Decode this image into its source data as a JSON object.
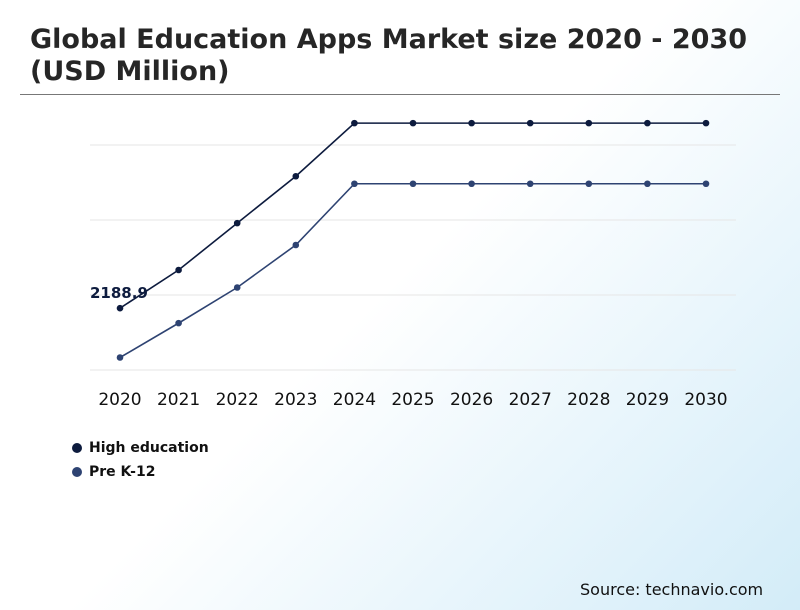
{
  "title": "Global Education Apps Market size 2020 - 2030 (USD Million)",
  "source": "Source: technavio.com",
  "colors": {
    "high_education": "#0d1b3e",
    "pre_k12": "#2e4372",
    "grid": "#e6e6e6"
  },
  "legend": [
    {
      "name": "High education",
      "color": "#0d1b3e"
    },
    {
      "name": "Pre K-12",
      "color": "#2e4372"
    }
  ],
  "chart_data": {
    "type": "line",
    "categories": [
      "2020",
      "2021",
      "2022",
      "2023",
      "2024",
      "2025",
      "2026",
      "2027",
      "2028",
      "2029",
      "2030"
    ],
    "series": [
      {
        "name": "High education",
        "values": [
          2188.9,
          2800,
          3550,
          4300,
          5150,
          5150,
          5150,
          5150,
          5150,
          5150,
          5150
        ]
      },
      {
        "name": "Pre K-12",
        "values": [
          1400,
          1950,
          2520,
          3200,
          4180,
          4180,
          4180,
          4180,
          4180,
          4180,
          4180
        ]
      }
    ],
    "annotations": [
      {
        "series": "High education",
        "category": "2020",
        "text": "2188.9"
      }
    ],
    "ylim": [
      1200,
      5200
    ],
    "yticks": [
      1200,
      2400,
      3600,
      4800
    ],
    "ytick_labels_visible": false,
    "grid": true,
    "xlabel": "",
    "ylabel": "",
    "legend_position": "bottom-left"
  }
}
